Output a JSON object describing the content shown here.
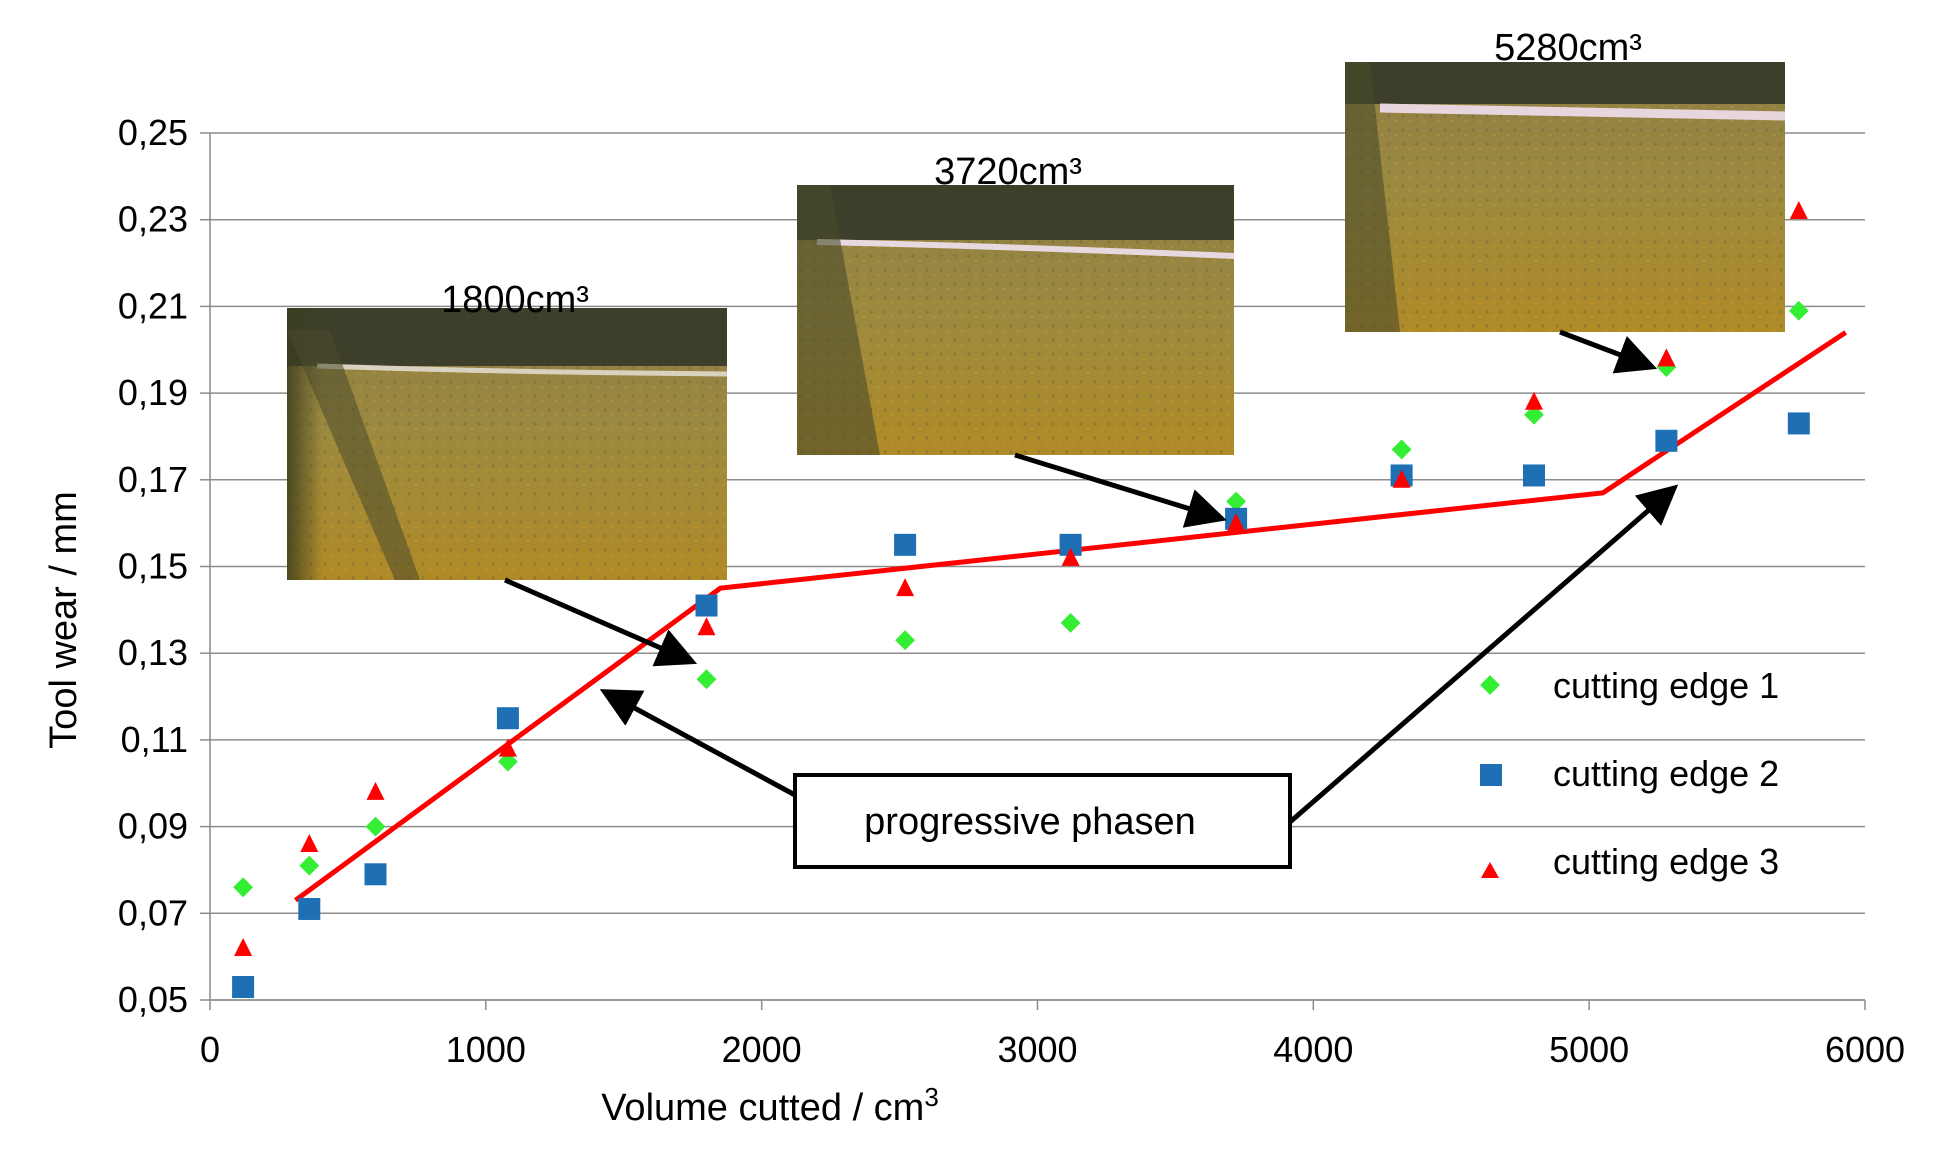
{
  "chart_data": {
    "type": "scatter",
    "title": "",
    "xlabel": "Volume cutted  / cm",
    "xlabel_sup": "3",
    "ylabel": "Tool wear  / mm",
    "xlim": [
      0,
      6000
    ],
    "ylim": [
      0.05,
      0.25
    ],
    "x_ticks": [
      "0",
      "1000",
      "2000",
      "3000",
      "4000",
      "5000",
      "6000"
    ],
    "y_ticks": [
      "0,05",
      "0,07",
      "0,09",
      "0,11",
      "0,13",
      "0,15",
      "0,17",
      "0,19",
      "0,21",
      "0,23",
      "0,25"
    ],
    "grid": "horizontal",
    "legend_position": "right",
    "series": [
      {
        "name": "cutting edge 1",
        "marker": "diamond",
        "color": "#33ee33",
        "x": [
          120,
          360,
          600,
          1080,
          1800,
          2520,
          3120,
          3720,
          4320,
          4800,
          5280,
          5760
        ],
        "y": [
          0.076,
          0.081,
          0.09,
          0.105,
          0.124,
          0.133,
          0.137,
          0.165,
          0.177,
          0.185,
          0.196,
          0.209
        ]
      },
      {
        "name": "cutting edge 2",
        "marker": "square",
        "color": "#1f6fb4",
        "x": [
          120,
          360,
          600,
          1080,
          1800,
          2520,
          3120,
          3720,
          4320,
          4800,
          5280,
          5760
        ],
        "y": [
          0.053,
          0.071,
          0.079,
          0.115,
          0.141,
          0.155,
          0.155,
          0.161,
          0.171,
          0.171,
          0.179,
          0.183
        ]
      },
      {
        "name": "cutting edge 3",
        "marker": "triangle",
        "color": "#ff0000",
        "x": [
          120,
          360,
          600,
          1080,
          1800,
          2520,
          3120,
          3720,
          4320,
          4800,
          5280,
          5760
        ],
        "y": [
          0.062,
          0.086,
          0.098,
          0.108,
          0.136,
          0.145,
          0.152,
          0.16,
          0.17,
          0.188,
          0.198,
          0.232
        ]
      }
    ],
    "trend_line": {
      "color": "#ff0000",
      "x": [
        310,
        1850,
        5050,
        5930
      ],
      "y": [
        0.073,
        0.145,
        0.167,
        0.204
      ]
    },
    "annotations": {
      "callout_text": "progressive phasen",
      "photos": [
        {
          "label": "1800cm³",
          "target_x": 1800,
          "target_y": 0.128
        },
        {
          "label": "3720cm³",
          "target_x": 3720,
          "target_y": 0.161
        },
        {
          "label": "5280cm³",
          "target_x": 5280,
          "target_y": 0.196
        }
      ],
      "callout_targets": [
        {
          "x": 1400,
          "y": 0.123
        },
        {
          "x": 5280,
          "y": 0.17
        }
      ]
    }
  }
}
